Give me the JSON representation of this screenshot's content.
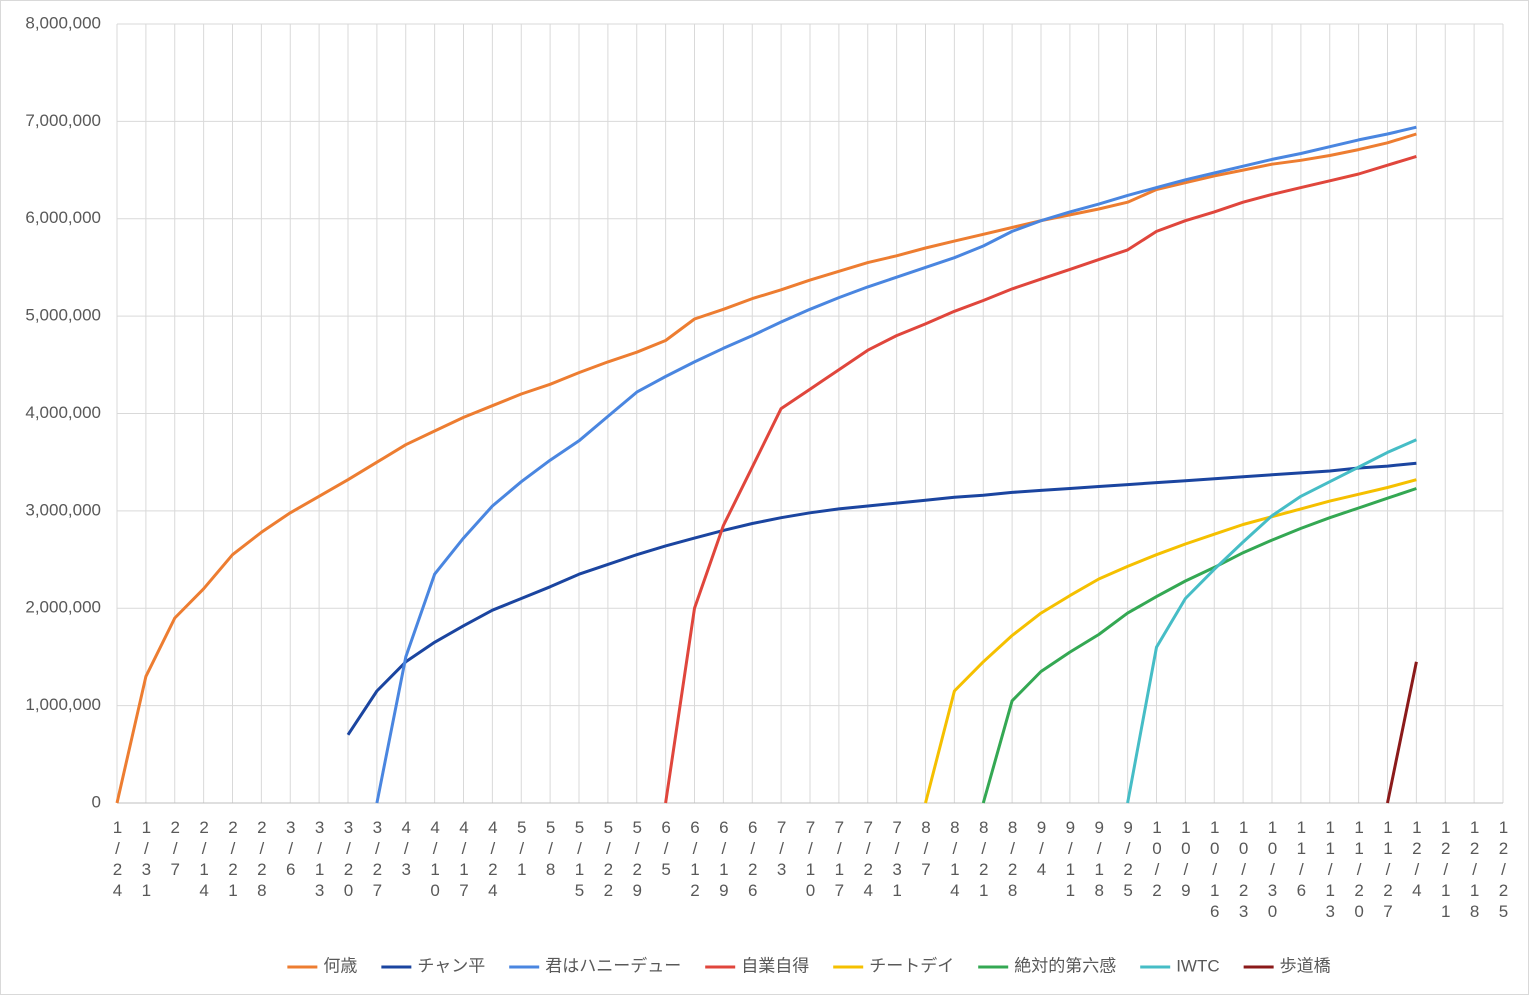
{
  "chart_data": {
    "type": "line",
    "categories": [
      "1/24",
      "1/31",
      "2/7",
      "2/14",
      "2/21",
      "2/28",
      "3/6",
      "3/13",
      "3/20",
      "3/27",
      "4/3",
      "4/10",
      "4/17",
      "4/24",
      "5/1",
      "5/8",
      "5/15",
      "5/22",
      "5/29",
      "6/5",
      "6/12",
      "6/19",
      "6/26",
      "7/3",
      "7/10",
      "7/17",
      "7/24",
      "7/31",
      "8/7",
      "8/14",
      "8/21",
      "8/28",
      "9/4",
      "9/11",
      "9/18",
      "9/25",
      "10/2",
      "10/9",
      "10/16",
      "10/23",
      "10/30",
      "11/6",
      "11/13",
      "11/20",
      "11/27",
      "12/4",
      "12/11",
      "12/18",
      "12/25"
    ],
    "ylim": [
      0,
      8000000
    ],
    "yticks": [
      0,
      {
        "value": 1000000,
        "label": "1,000,000"
      },
      {
        "value": 2000000,
        "label": "2,000,000"
      },
      {
        "value": 3000000,
        "label": "3,000,000"
      },
      {
        "value": 4000000,
        "label": "4,000,000"
      },
      {
        "value": 5000000,
        "label": "5,000,000"
      },
      {
        "value": 6000000,
        "label": "6,000,000"
      },
      {
        "value": 7000000,
        "label": "7,000,000"
      },
      {
        "value": 8000000,
        "label": "8,000,000"
      }
    ],
    "grid": true,
    "legend": "bottom",
    "series": [
      {
        "name": "何歳",
        "color": "#ed7d31",
        "values": [
          0,
          1300000,
          1900000,
          2200000,
          2550000,
          2780000,
          2980000,
          3150000,
          3320000,
          3500000,
          3680000,
          3820000,
          3960000,
          4080000,
          4200000,
          4300000,
          4420000,
          4530000,
          4630000,
          4750000,
          4970000,
          5070000,
          5180000,
          5270000,
          5370000,
          5460000,
          5550000,
          5620000,
          5700000,
          5770000,
          5840000,
          5910000,
          5980000,
          6040000,
          6100000,
          6170000,
          6300000,
          6370000,
          6440000,
          6500000,
          6560000,
          6600000,
          6650000,
          6710000,
          6780000,
          6870000,
          null,
          null,
          null
        ]
      },
      {
        "name": "チャン平",
        "color": "#1b45a0",
        "values": [
          null,
          null,
          null,
          null,
          null,
          null,
          null,
          null,
          700000,
          1150000,
          1450000,
          1650000,
          1820000,
          1980000,
          2100000,
          2220000,
          2350000,
          2450000,
          2550000,
          2640000,
          2720000,
          2800000,
          2870000,
          2930000,
          2980000,
          3020000,
          3050000,
          3080000,
          3110000,
          3140000,
          3160000,
          3190000,
          3210000,
          3230000,
          3250000,
          3270000,
          3290000,
          3310000,
          3330000,
          3350000,
          3370000,
          3390000,
          3410000,
          3440000,
          3460000,
          3490000,
          null,
          null,
          null
        ]
      },
      {
        "name": "君はハニーデュー",
        "color": "#4a86e0",
        "values": [
          null,
          null,
          null,
          null,
          null,
          null,
          null,
          null,
          null,
          0,
          1500000,
          2350000,
          2720000,
          3050000,
          3300000,
          3520000,
          3720000,
          3970000,
          4220000,
          4380000,
          4530000,
          4670000,
          4800000,
          4940000,
          5070000,
          5190000,
          5300000,
          5400000,
          5500000,
          5600000,
          5720000,
          5870000,
          5980000,
          6070000,
          6150000,
          6240000,
          6320000,
          6400000,
          6470000,
          6540000,
          6610000,
          6670000,
          6740000,
          6810000,
          6870000,
          6940000,
          null,
          null,
          null
        ]
      },
      {
        "name": "自業自得",
        "color": "#e0463c",
        "values": [
          null,
          null,
          null,
          null,
          null,
          null,
          null,
          null,
          null,
          null,
          null,
          null,
          null,
          null,
          null,
          null,
          null,
          null,
          null,
          0,
          2000000,
          2850000,
          3450000,
          4050000,
          4250000,
          4450000,
          4650000,
          4800000,
          4920000,
          5050000,
          5160000,
          5280000,
          5380000,
          5480000,
          5580000,
          5680000,
          5870000,
          5980000,
          6070000,
          6170000,
          6250000,
          6320000,
          6390000,
          6460000,
          6550000,
          6640000,
          null,
          null,
          null
        ]
      },
      {
        "name": "チートデイ",
        "color": "#f5c000",
        "values": [
          null,
          null,
          null,
          null,
          null,
          null,
          null,
          null,
          null,
          null,
          null,
          null,
          null,
          null,
          null,
          null,
          null,
          null,
          null,
          null,
          null,
          null,
          null,
          null,
          null,
          null,
          null,
          null,
          0,
          1150000,
          1450000,
          1720000,
          1950000,
          2130000,
          2300000,
          2430000,
          2550000,
          2660000,
          2760000,
          2860000,
          2940000,
          3020000,
          3100000,
          3170000,
          3240000,
          3320000,
          null,
          null,
          null
        ]
      },
      {
        "name": "絶対的第六感",
        "color": "#34a853",
        "values": [
          null,
          null,
          null,
          null,
          null,
          null,
          null,
          null,
          null,
          null,
          null,
          null,
          null,
          null,
          null,
          null,
          null,
          null,
          null,
          null,
          null,
          null,
          null,
          null,
          null,
          null,
          null,
          null,
          null,
          null,
          0,
          1050000,
          1350000,
          1550000,
          1730000,
          1950000,
          2120000,
          2280000,
          2420000,
          2570000,
          2700000,
          2820000,
          2930000,
          3030000,
          3130000,
          3230000,
          null,
          null,
          null
        ]
      },
      {
        "name": "IWTC",
        "color": "#46bdc6",
        "values": [
          null,
          null,
          null,
          null,
          null,
          null,
          null,
          null,
          null,
          null,
          null,
          null,
          null,
          null,
          null,
          null,
          null,
          null,
          null,
          null,
          null,
          null,
          null,
          null,
          null,
          null,
          null,
          null,
          null,
          null,
          null,
          null,
          null,
          null,
          null,
          0,
          1600000,
          2100000,
          2400000,
          2680000,
          2950000,
          3150000,
          3300000,
          3450000,
          3600000,
          3730000,
          null,
          null,
          null
        ]
      },
      {
        "name": "歩道橋",
        "color": "#8b1a1a",
        "values": [
          null,
          null,
          null,
          null,
          null,
          null,
          null,
          null,
          null,
          null,
          null,
          null,
          null,
          null,
          null,
          null,
          null,
          null,
          null,
          null,
          null,
          null,
          null,
          null,
          null,
          null,
          null,
          null,
          null,
          null,
          null,
          null,
          null,
          null,
          null,
          null,
          null,
          null,
          null,
          null,
          null,
          null,
          null,
          null,
          0,
          1450000,
          null,
          null,
          null
        ]
      }
    ]
  }
}
